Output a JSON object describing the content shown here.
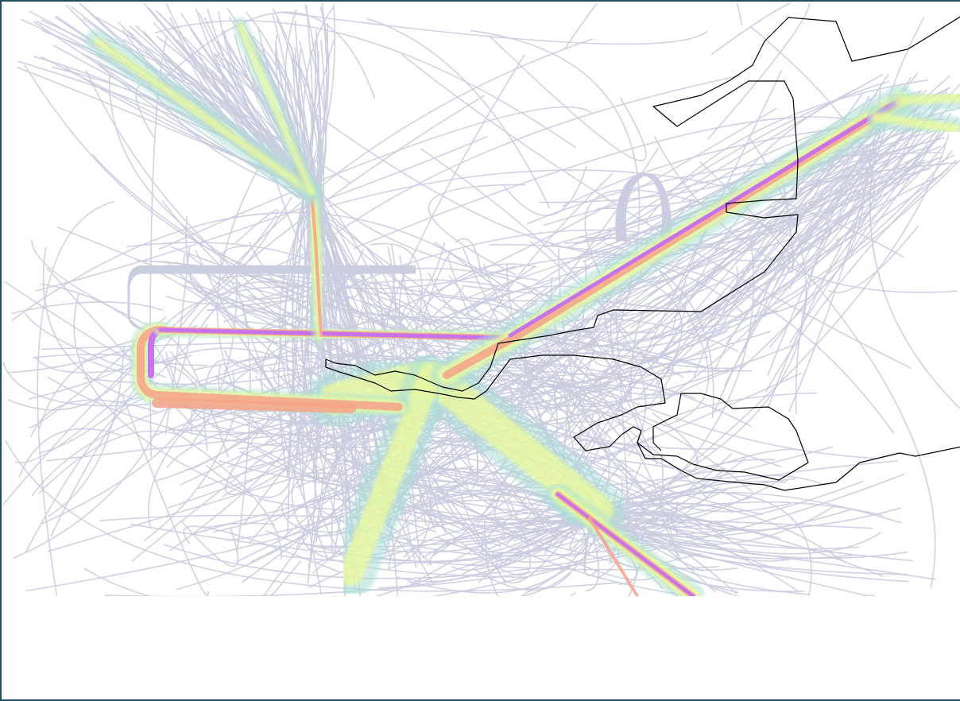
{
  "map": {
    "colors": {
      "frame_border": "#1f4e5f",
      "background": "#ffffff",
      "trajectory_sparse": "#c9cddf",
      "density_low": "#a8dcd6",
      "density_medium": "#eefc9a",
      "density_high": "#f6a28a",
      "density_peak": "#c46ef0",
      "coastline": "#000000"
    },
    "layers": [
      "trajectories",
      "density-overlay",
      "coastline"
    ],
    "legend_visible": false,
    "axes_visible": false
  }
}
